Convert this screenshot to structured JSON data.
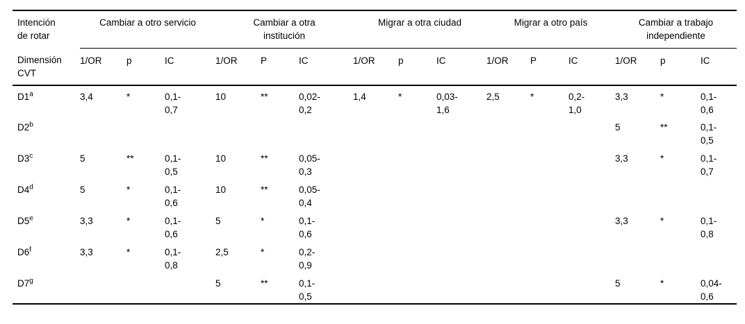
{
  "table": {
    "corner": "Intención\nde rotar",
    "dim_header": "Dimensión\nCVT",
    "groups": [
      {
        "label": "Cambiar a otro servicio",
        "cols": [
          "1/OR",
          "p",
          "IC"
        ]
      },
      {
        "label": "Cambiar a otra\ninstitución",
        "cols": [
          "1/OR",
          "P",
          "IC"
        ]
      },
      {
        "label": "Migrar a otra ciudad",
        "cols": [
          "1/OR",
          "p",
          "IC"
        ]
      },
      {
        "label": "Migrar a otro país",
        "cols": [
          "1/OR",
          "P",
          "IC"
        ]
      },
      {
        "label": "Cambiar a trabajo\nindependiente",
        "cols": [
          "1/OR",
          "p",
          "IC"
        ]
      }
    ],
    "rows": [
      {
        "dim": "D1",
        "sup": "a",
        "cells": [
          [
            "3,4",
            "*",
            "0,1-\n0,7"
          ],
          [
            "10",
            "**",
            "0,02-\n0,2"
          ],
          [
            "1,4",
            "*",
            "0,03-\n1,6"
          ],
          [
            "2,5",
            "*",
            "0,2-\n1,0"
          ],
          [
            "3,3",
            "*",
            "0,1-\n0,6"
          ]
        ]
      },
      {
        "dim": "D2",
        "sup": "b",
        "cells": [
          [
            "",
            "",
            ""
          ],
          [
            "",
            "",
            ""
          ],
          [
            "",
            "",
            ""
          ],
          [
            "",
            "",
            ""
          ],
          [
            "5",
            "**",
            "0,1-\n0,5"
          ]
        ]
      },
      {
        "dim": "D3",
        "sup": "c",
        "cells": [
          [
            "5",
            "**",
            "0,1-\n0,5"
          ],
          [
            "10",
            "**",
            "0,05-\n0,3"
          ],
          [
            "",
            "",
            ""
          ],
          [
            "",
            "",
            ""
          ],
          [
            "3,3",
            "*",
            "0,1-\n0,7"
          ]
        ]
      },
      {
        "dim": "D4",
        "sup": "d",
        "cells": [
          [
            "5",
            "*",
            "0,1-\n0,6"
          ],
          [
            "10",
            "**",
            "0,05-\n0,4"
          ],
          [
            "",
            "",
            ""
          ],
          [
            "",
            "",
            ""
          ],
          [
            "",
            "",
            ""
          ]
        ]
      },
      {
        "dim": "D5",
        "sup": "e",
        "cells": [
          [
            "3,3",
            "*",
            "0,1-\n0,6"
          ],
          [
            "5",
            "*",
            "0,1-\n0,6"
          ],
          [
            "",
            "",
            ""
          ],
          [
            "",
            "",
            ""
          ],
          [
            "3,3",
            "*",
            "0,1-\n0,8"
          ]
        ]
      },
      {
        "dim": "D6",
        "sup": "f",
        "cells": [
          [
            "3,3",
            "*",
            "0,1-\n0,8"
          ],
          [
            "2,5",
            "*",
            "0,2-\n0,9"
          ],
          [
            "",
            "",
            ""
          ],
          [
            "",
            "",
            ""
          ],
          [
            "",
            "",
            ""
          ]
        ]
      },
      {
        "dim": "D7",
        "sup": "g",
        "cells": [
          [
            "",
            "",
            ""
          ],
          [
            "5",
            "**",
            "0,1-\n0,5"
          ],
          [
            "",
            "",
            ""
          ],
          [
            "",
            "",
            ""
          ],
          [
            "5",
            "*",
            "0,04-\n0,6"
          ]
        ]
      }
    ]
  },
  "colors": {
    "text": "#000000",
    "background": "#ffffff",
    "rule": "#000000"
  }
}
